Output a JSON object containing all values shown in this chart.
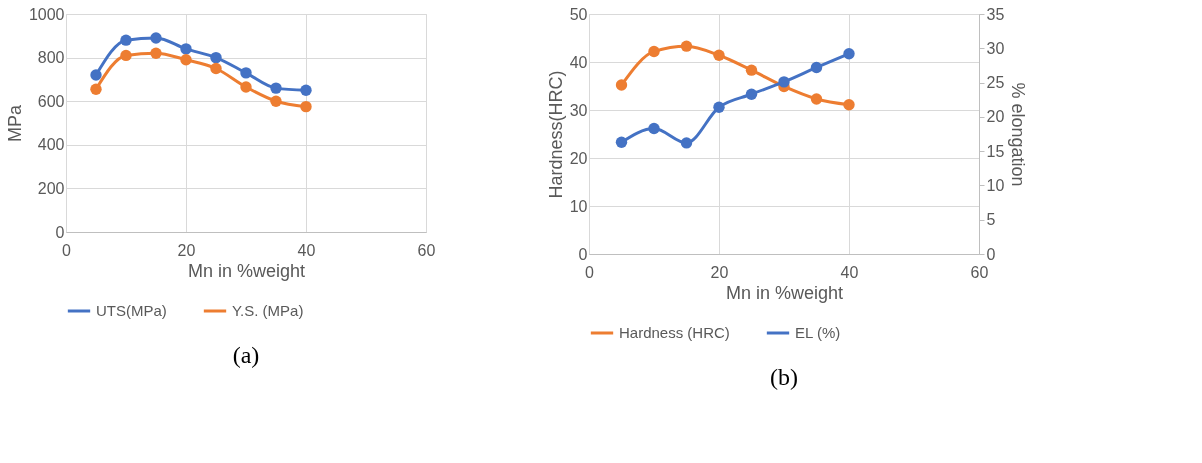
{
  "chart_data": [
    {
      "type": "line",
      "xlabel": "Mn in %weight",
      "ylabel": "MPa",
      "x": [
        5,
        10,
        15,
        20,
        25,
        30,
        35,
        40
      ],
      "xlim": [
        0,
        60
      ],
      "xticks": [
        0,
        20,
        40,
        60
      ],
      "ylim": [
        0,
        1000
      ],
      "yticks": [
        0,
        200,
        400,
        600,
        800,
        1000
      ],
      "grid": true,
      "legend": "bottom",
      "marker": "circle",
      "annotations": [
        "(a)"
      ],
      "series": [
        {
          "name": "UTS(MPa)",
          "color": "#4472c4",
          "values": [
            720,
            880,
            890,
            840,
            800,
            730,
            660,
            650
          ]
        },
        {
          "name": "Y.S. (MPa)",
          "color": "#ed7d31",
          "values": [
            655,
            810,
            820,
            790,
            750,
            665,
            600,
            575
          ]
        }
      ]
    },
    {
      "type": "line",
      "xlabel": "Mn in %weight",
      "ylabel": "Hardness(HRC)",
      "y2label": "% elongation",
      "x": [
        5,
        10,
        15,
        20,
        25,
        30,
        35,
        40
      ],
      "xlim": [
        0,
        60
      ],
      "xticks": [
        0,
        20,
        40,
        60
      ],
      "ylim": [
        0,
        50
      ],
      "yticks": [
        0,
        10,
        20,
        30,
        40,
        50
      ],
      "y2lim": [
        0,
        35
      ],
      "y2ticks": [
        0,
        5,
        10,
        15,
        20,
        25,
        30,
        35
      ],
      "grid": true,
      "legend": "bottom",
      "marker": "circle",
      "annotations": [
        "(b)"
      ],
      "series": [
        {
          "name": "Hardness (HRC)",
          "color": "#ed7d31",
          "values": [
            35.2,
            42.2,
            43.3,
            41.4,
            38.3,
            34.9,
            32.3,
            31.1
          ]
        },
        {
          "name": "EL (%)",
          "color": "#4472c4",
          "axis": "y2",
          "values": [
            16.3,
            18.3,
            16.2,
            21.4,
            23.3,
            25.1,
            27.2,
            29.2
          ]
        }
      ]
    }
  ]
}
